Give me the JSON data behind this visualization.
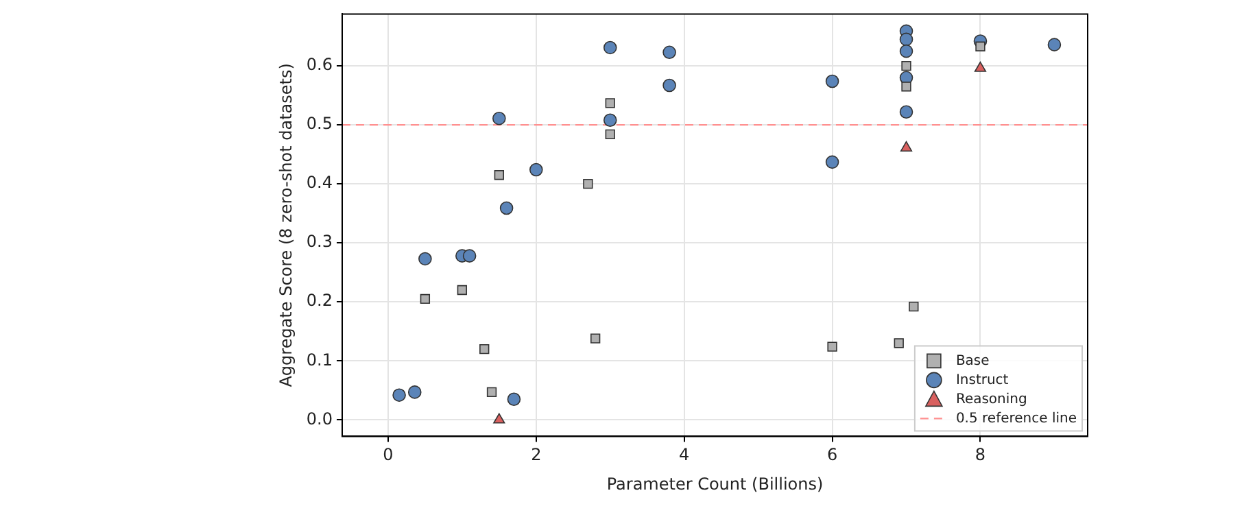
{
  "chart_data": {
    "type": "scatter",
    "xlabel": "Parameter Count (Billions)",
    "ylabel": "Aggregate Score (8 zero-shot datasets)",
    "xlim": [
      -0.62,
      9.45
    ],
    "xticks": [
      0,
      2,
      4,
      6,
      8
    ],
    "ylim": [
      -0.028,
      0.688
    ],
    "yticks": [
      {
        "value": 0,
        "label": "0.0"
      },
      {
        "value": 0.1,
        "label": "0.1"
      },
      {
        "value": 0.2,
        "label": "0.2"
      },
      {
        "value": 0.3,
        "label": "0.3"
      },
      {
        "value": 0.4,
        "label": "0.4"
      },
      {
        "value": 0.5,
        "label": "0.5"
      },
      {
        "value": 0.6,
        "label": "0.6"
      }
    ],
    "grid": true,
    "legend": "bottom right",
    "series": [
      {
        "name": "Base",
        "color": "#b0b0b0",
        "marker": "square",
        "x": [
          0.5,
          1.0,
          1.3,
          1.4,
          1.5,
          2.7,
          2.8,
          3.0,
          3.0,
          6.0,
          6.9,
          7.0,
          7.0,
          7.1,
          8.0
        ],
        "values": [
          0.205,
          0.22,
          0.12,
          0.047,
          0.415,
          0.4,
          0.138,
          0.537,
          0.484,
          0.124,
          0.13,
          0.6,
          0.565,
          0.192,
          0.633
        ]
      },
      {
        "name": "Instruct",
        "color": "#5b84b8",
        "marker": "circle",
        "x": [
          0.15,
          0.36,
          0.5,
          1.0,
          1.1,
          1.5,
          1.6,
          1.7,
          2.0,
          3.0,
          3.0,
          3.8,
          3.8,
          6.0,
          6.0,
          7.0,
          7.0,
          7.0,
          7.0,
          7.0,
          8.0,
          9.0
        ],
        "values": [
          0.042,
          0.047,
          0.273,
          0.278,
          0.278,
          0.511,
          0.359,
          0.035,
          0.424,
          0.631,
          0.508,
          0.623,
          0.567,
          0.574,
          0.437,
          0.659,
          0.645,
          0.625,
          0.58,
          0.522,
          0.642,
          0.636
        ]
      },
      {
        "name": "Reasoning",
        "color": "#d9605f",
        "marker": "triangle",
        "x": [
          1.5,
          7.0,
          8.0
        ],
        "values": [
          0.0,
          0.461,
          0.596
        ]
      }
    ],
    "ref_lines": [
      {
        "axis": "y",
        "value": 0.5,
        "label": "0.5 reference line",
        "color": "#ff9090",
        "line_style": "dashed"
      }
    ]
  }
}
